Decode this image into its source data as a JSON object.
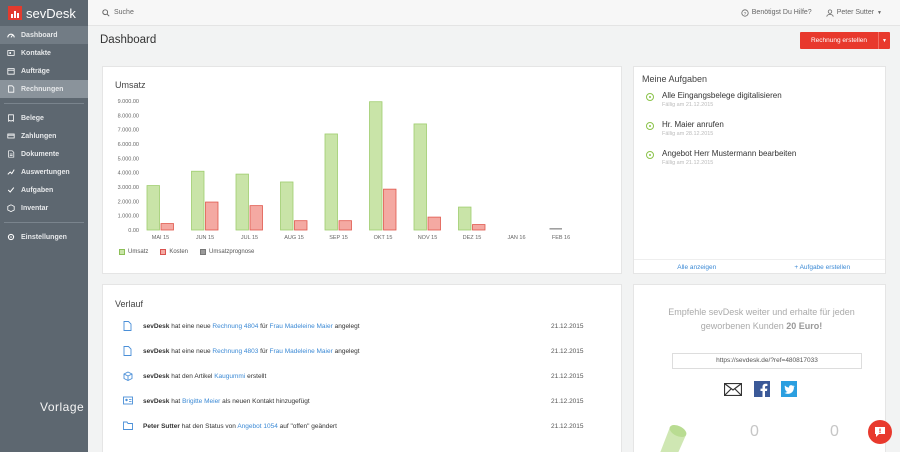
{
  "app": {
    "name": "sevDesk"
  },
  "sidebar": {
    "items": [
      {
        "label": "Dashboard",
        "icon": "dashboard-icon"
      },
      {
        "label": "Kontakte",
        "icon": "contacts-icon"
      },
      {
        "label": "Aufträge",
        "icon": "orders-icon"
      },
      {
        "label": "Rechnungen",
        "icon": "invoice-icon"
      },
      {
        "label": "Belege",
        "icon": "receipt-icon"
      },
      {
        "label": "Zahlungen",
        "icon": "payments-icon"
      },
      {
        "label": "Dokumente",
        "icon": "documents-icon"
      },
      {
        "label": "Auswertungen",
        "icon": "reports-icon"
      },
      {
        "label": "Aufgaben",
        "icon": "tasks-icon"
      },
      {
        "label": "Inventar",
        "icon": "inventory-icon"
      },
      {
        "label": "Einstellungen",
        "icon": "settings-icon"
      }
    ]
  },
  "watermark": "Vorlage l",
  "topbar": {
    "search_label": "Suche",
    "help_label": "Benötigst Du Hilfe?",
    "user_name": "Peter Sutter"
  },
  "header": {
    "title": "Dashboard",
    "new_invoice_label": "Rechnung erstellen"
  },
  "umsatz": {
    "title": "Umsatz",
    "legend": [
      {
        "label": "Umsatz",
        "color": "#c9e4a8"
      },
      {
        "label": "Kosten",
        "color": "#f4a9a2"
      },
      {
        "label": "Umsatzprognose",
        "color": "#9a9a9a"
      }
    ]
  },
  "chart_data": {
    "type": "bar",
    "title": "Umsatz",
    "categories": [
      "MAI 15",
      "JUN 15",
      "JUL 15",
      "AUG 15",
      "SEP 15",
      "OKT 15",
      "NOV 15",
      "DEZ 15",
      "JAN 16",
      "FEB 16"
    ],
    "series": [
      {
        "name": "Umsatz",
        "color": "#c9e4a8",
        "values": [
          3100,
          4100,
          3900,
          3350,
          6700,
          8950,
          7400,
          1600,
          0,
          0
        ]
      },
      {
        "name": "Kosten",
        "color": "#f4a9a2",
        "values": [
          450,
          1950,
          1700,
          650,
          650,
          2850,
          900,
          380,
          0,
          0
        ]
      },
      {
        "name": "Umsatzprognose",
        "color": "#9a9a9a",
        "values": [
          0,
          0,
          0,
          0,
          0,
          0,
          0,
          0,
          0,
          100
        ]
      }
    ],
    "yticks": [
      "0.00",
      "1.000.00",
      "2.000.00",
      "3.000.00",
      "4.000.00",
      "5.000.00",
      "6.000.00",
      "7.000.00",
      "8.000.00",
      "9.000.00"
    ],
    "ylim": [
      0,
      9000
    ],
    "grid": false,
    "legend": "bottom-left"
  },
  "aufgaben": {
    "title": "Meine Aufgaben",
    "tasks": [
      {
        "title": "Alle Eingangsbelege digitalisieren",
        "due": "Fällig am 21.12.2015"
      },
      {
        "title": "Hr. Maier anrufen",
        "due": "Fällig am 28.12.2015"
      },
      {
        "title": "Angebot Herr Mustermann bearbeiten",
        "due": "Fällig am 21.12.2015"
      }
    ],
    "show_all": "Alle anzeigen",
    "add_task": "+ Aufgabe erstellen"
  },
  "verlauf": {
    "title": "Verlauf",
    "rows": [
      {
        "actor": "sevDesk",
        "pre": "hat eine neue",
        "link1": "Rechnung 4804",
        "mid": "für",
        "link2": "Frau Madeleine Maier",
        "post": "angelegt",
        "date": "21.12.2015",
        "icon": "document-icon"
      },
      {
        "actor": "sevDesk",
        "pre": "hat eine neue",
        "link1": "Rechnung 4803",
        "mid": "für",
        "link2": "Frau Madeleine Maier",
        "post": "angelegt",
        "date": "21.12.2015",
        "icon": "document-icon"
      },
      {
        "actor": "sevDesk",
        "pre": "hat den Artikel",
        "link1": "Kaugummi",
        "mid": "",
        "link2": "",
        "post": "erstellt",
        "date": "21.12.2015",
        "icon": "box-icon"
      },
      {
        "actor": "sevDesk",
        "pre": "hat",
        "link1": "Brigitte Meier",
        "mid": "",
        "link2": "",
        "post": "als neuen Kontakt hinzugefügt",
        "date": "21.12.2015",
        "icon": "contact-card-icon"
      },
      {
        "actor": "Peter Sutter",
        "pre": "hat den Status von",
        "link1": "Angebot 1054",
        "mid": "",
        "link2": "",
        "post": "auf \"offen\" geändert",
        "date": "21.12.2015",
        "icon": "folder-icon"
      }
    ]
  },
  "empfehle": {
    "text": "Empfehle sevDesk weiter und erhalte für jeden geworbenen Kunden",
    "bonus": "20 Euro!",
    "ref_link": "https://sevdesk.de/?ref=480817033",
    "count_left": "0",
    "count_right": "0"
  }
}
